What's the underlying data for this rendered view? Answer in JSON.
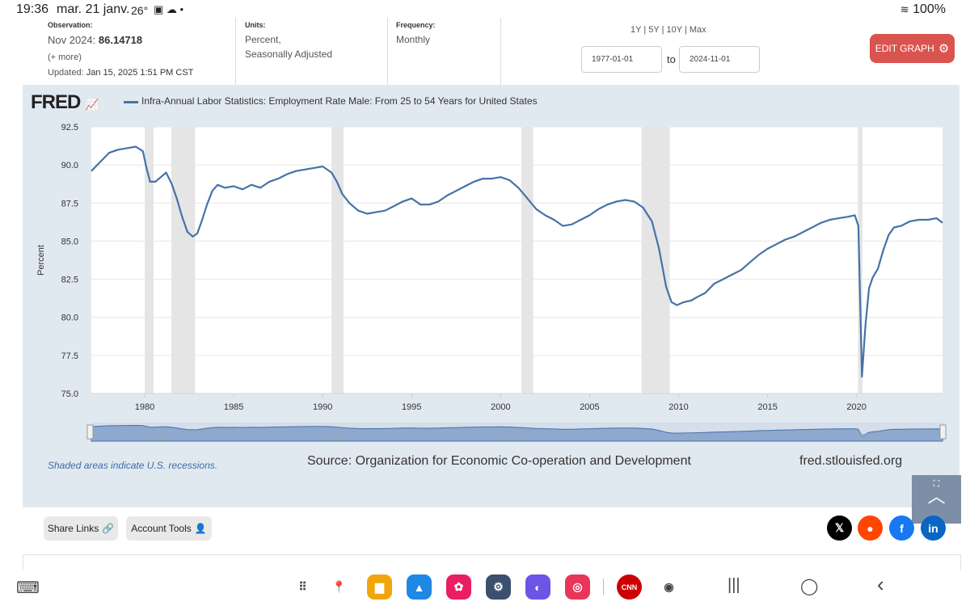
{
  "status_bar": {
    "time": "19:36",
    "date": "mar. 21 janv.",
    "temperature": "26°",
    "battery": "100%",
    "notification_icons": [
      "image-icon",
      "weather-icon",
      "dot-icon"
    ]
  },
  "observation": {
    "label": "Observation:",
    "period": "Nov 2024:",
    "value": "86.14718",
    "more": "(+ more)",
    "updated_prefix": "Updated:",
    "updated": "Jan 15, 2025 1:51 PM CST"
  },
  "units": {
    "label": "Units:",
    "line1": "Percent,",
    "line2": "Seasonally Adjusted"
  },
  "frequency": {
    "label": "Frequency:",
    "value": "Monthly"
  },
  "range": {
    "buttons": [
      "1Y",
      "5Y",
      "10Y",
      "Max"
    ],
    "separator": "|",
    "start": "1977-01-01",
    "to_label": "to",
    "end": "2024-11-01"
  },
  "edit_button": {
    "label": "EDIT GRAPH",
    "color": "#d9534f"
  },
  "chart_data": {
    "type": "line",
    "title": "Infra-Annual Labor Statistics: Employment Rate Male: From 25 to 54 Years for United States",
    "logo": "FRED",
    "ylabel": "Percent",
    "xlabel": "",
    "ylim": [
      75.0,
      92.5
    ],
    "xlim": [
      1977.0,
      2024.83
    ],
    "yticks": [
      "75.0",
      "77.5",
      "80.0",
      "82.5",
      "85.0",
      "87.5",
      "90.0",
      "92.5"
    ],
    "xticks": [
      "1980",
      "1985",
      "1990",
      "1995",
      "2000",
      "2005",
      "2010",
      "2015",
      "2020"
    ],
    "grid": true,
    "line_color": "#4572a7",
    "recession_color": "#e5e5e5",
    "recessions": [
      [
        1980.0,
        1980.5
      ],
      [
        1981.5,
        1982.83
      ],
      [
        1990.5,
        1991.17
      ],
      [
        2001.17,
        2001.83
      ],
      [
        2007.92,
        2009.5
      ],
      [
        2020.08,
        2020.33
      ]
    ],
    "series": [
      {
        "name": "Infra-Annual Labor Statistics: Employment Rate Male: From 25 to 54 Years for United States",
        "x": [
          1977.0,
          1977.5,
          1978.0,
          1978.5,
          1979.0,
          1979.5,
          1979.9,
          1980.1,
          1980.3,
          1980.6,
          1980.9,
          1981.2,
          1981.5,
          1981.8,
          1982.1,
          1982.4,
          1982.7,
          1982.95,
          1983.2,
          1983.5,
          1983.8,
          1984.1,
          1984.5,
          1985.0,
          1985.5,
          1986.0,
          1986.5,
          1987.0,
          1987.5,
          1988.0,
          1988.5,
          1989.0,
          1989.5,
          1990.0,
          1990.5,
          1990.8,
          1991.1,
          1991.5,
          1992.0,
          1992.5,
          1993.0,
          1993.5,
          1994.0,
          1994.5,
          1995.0,
          1995.5,
          1996.0,
          1996.5,
          1997.0,
          1997.5,
          1998.0,
          1998.5,
          1999.0,
          1999.5,
          2000.0,
          2000.5,
          2001.0,
          2001.5,
          2002.0,
          2002.5,
          2003.0,
          2003.5,
          2004.0,
          2004.5,
          2005.0,
          2005.5,
          2006.0,
          2006.5,
          2007.0,
          2007.5,
          2008.0,
          2008.5,
          2008.9,
          2009.3,
          2009.6,
          2009.9,
          2010.3,
          2010.7,
          2011.0,
          2011.5,
          2012.0,
          2012.5,
          2013.0,
          2013.5,
          2014.0,
          2014.5,
          2015.0,
          2015.5,
          2016.0,
          2016.5,
          2017.0,
          2017.5,
          2018.0,
          2018.5,
          2019.0,
          2019.5,
          2019.9,
          2020.1,
          2020.3,
          2020.5,
          2020.7,
          2020.9,
          2021.2,
          2021.5,
          2021.8,
          2022.1,
          2022.5,
          2023.0,
          2023.5,
          2024.0,
          2024.5,
          2024.83
        ],
        "values": [
          89.6,
          90.2,
          90.8,
          91.0,
          91.1,
          91.2,
          90.9,
          89.8,
          88.9,
          88.9,
          89.2,
          89.5,
          88.8,
          87.8,
          86.6,
          85.6,
          85.3,
          85.5,
          86.3,
          87.4,
          88.3,
          88.7,
          88.5,
          88.6,
          88.4,
          88.7,
          88.5,
          88.9,
          89.1,
          89.4,
          89.6,
          89.7,
          89.8,
          89.9,
          89.5,
          88.9,
          88.1,
          87.5,
          87.0,
          86.8,
          86.9,
          87.0,
          87.3,
          87.6,
          87.8,
          87.4,
          87.4,
          87.6,
          88.0,
          88.3,
          88.6,
          88.9,
          89.1,
          89.1,
          89.2,
          89.0,
          88.5,
          87.8,
          87.1,
          86.7,
          86.4,
          86.0,
          86.1,
          86.4,
          86.7,
          87.1,
          87.4,
          87.6,
          87.7,
          87.6,
          87.2,
          86.3,
          84.5,
          82.0,
          81.0,
          80.8,
          81.0,
          81.1,
          81.3,
          81.6,
          82.2,
          82.5,
          82.8,
          83.1,
          83.6,
          84.1,
          84.5,
          84.8,
          85.1,
          85.3,
          85.6,
          85.9,
          86.2,
          86.4,
          86.5,
          86.6,
          86.7,
          86.0,
          76.1,
          79.5,
          81.9,
          82.6,
          83.2,
          84.4,
          85.4,
          85.9,
          86.0,
          86.3,
          86.4,
          86.4,
          86.5,
          86.2
        ]
      }
    ],
    "navigator_ticks": [
      "1980",
      "1990",
      "2000",
      "2010",
      "2020"
    ],
    "recession_note": "Shaded areas indicate U.S. recessions.",
    "source": "Source: Organization for Economic Co-operation and Development",
    "site": "fred.stlouisfed.org"
  },
  "actions": {
    "share_links": "Share Links",
    "account_tools": "Account Tools"
  },
  "social": [
    {
      "name": "X",
      "glyph": "𝕏",
      "color": "#000000"
    },
    {
      "name": "Reddit",
      "glyph": "●",
      "color": "#ff4500"
    },
    {
      "name": "Facebook",
      "glyph": "f",
      "color": "#1877f2"
    },
    {
      "name": "LinkedIn",
      "glyph": "in",
      "color": "#0a66c2"
    }
  ],
  "dock_apps": [
    {
      "name": "apps-grid-icon",
      "glyph": "⠿",
      "color": ""
    },
    {
      "name": "maps-icon",
      "glyph": "📍",
      "color": ""
    },
    {
      "name": "files-icon",
      "glyph": "▆",
      "color": "#f2a50a"
    },
    {
      "name": "drive-icon",
      "glyph": "▲",
      "color": "#1e88e5"
    },
    {
      "name": "gallery-icon",
      "glyph": "✿",
      "color": "#e91e63"
    },
    {
      "name": "settings-icon",
      "glyph": "⚙",
      "color": "#3c4f6e"
    },
    {
      "name": "internet-icon",
      "glyph": "◐",
      "color": "#6b54e6"
    },
    {
      "name": "camera-icon",
      "glyph": "◎",
      "color": "#e8365a"
    },
    {
      "name": "cnn-icon",
      "glyph": "CNN",
      "color": "#cc0000"
    },
    {
      "name": "chrome-icon",
      "glyph": "◉",
      "color": ""
    }
  ],
  "nav_buttons": [
    "|||",
    "◯",
    "‹"
  ]
}
